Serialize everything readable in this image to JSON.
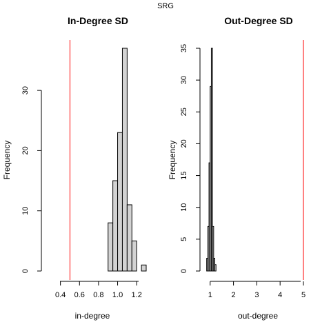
{
  "figure_title": "SRG",
  "chart_data": [
    {
      "type": "bar",
      "subtype": "histogram",
      "title": "In-Degree SD",
      "xlabel": "in-degree",
      "ylabel": "Frequency",
      "xlim": [
        0.2,
        1.3
      ],
      "ylim": [
        0,
        37
      ],
      "x_ticks": [
        0.4,
        0.6,
        0.8,
        1.0,
        1.2
      ],
      "x_tick_labels": [
        "0.4",
        "0.6",
        "0.8",
        "1.0",
        "1.2"
      ],
      "y_ticks": [
        0,
        10,
        20,
        30
      ],
      "y_tick_labels": [
        "0",
        "10",
        "20",
        "30"
      ],
      "bins": [
        {
          "x0": 0.9,
          "x1": 0.95,
          "count": 8
        },
        {
          "x0": 0.95,
          "x1": 1.0,
          "count": 15
        },
        {
          "x0": 1.0,
          "x1": 1.05,
          "count": 23
        },
        {
          "x0": 1.05,
          "x1": 1.1,
          "count": 37
        },
        {
          "x0": 1.1,
          "x1": 1.15,
          "count": 11
        },
        {
          "x0": 1.15,
          "x1": 1.2,
          "count": 5
        },
        {
          "x0": 1.2,
          "x1": 1.25,
          "count": 0
        },
        {
          "x0": 1.25,
          "x1": 1.3,
          "count": 1
        }
      ],
      "reference_line": {
        "x": 0.5,
        "color": "#ff0000"
      },
      "bar_fill": "#d3d3d3",
      "bar_stroke": "#000000"
    },
    {
      "type": "bar",
      "subtype": "histogram",
      "title": "Out-Degree SD",
      "xlabel": "out-degree",
      "ylabel": "Frequency",
      "xlim": [
        0.8,
        5
      ],
      "ylim": [
        0,
        35
      ],
      "x_ticks": [
        1,
        2,
        3,
        4,
        5
      ],
      "x_tick_labels": [
        "1",
        "2",
        "3",
        "4",
        "5"
      ],
      "y_ticks": [
        0,
        5,
        10,
        15,
        20,
        25,
        30,
        35
      ],
      "y_tick_labels": [
        "0",
        "5",
        "10",
        "15",
        "20",
        "25",
        "30",
        "35"
      ],
      "bins": [
        {
          "x0": 0.85,
          "x1": 0.9,
          "count": 2
        },
        {
          "x0": 0.9,
          "x1": 0.95,
          "count": 7
        },
        {
          "x0": 0.95,
          "x1": 1.0,
          "count": 17
        },
        {
          "x0": 1.0,
          "x1": 1.05,
          "count": 29
        },
        {
          "x0": 1.05,
          "x1": 1.1,
          "count": 35
        },
        {
          "x0": 1.1,
          "x1": 1.15,
          "count": 7
        },
        {
          "x0": 1.15,
          "x1": 1.2,
          "count": 2
        },
        {
          "x0": 1.2,
          "x1": 1.25,
          "count": 1
        }
      ],
      "reference_line": {
        "x": 5,
        "color": "#ff0000"
      },
      "bar_fill": "#d3d3d3",
      "bar_stroke": "#000000"
    }
  ]
}
